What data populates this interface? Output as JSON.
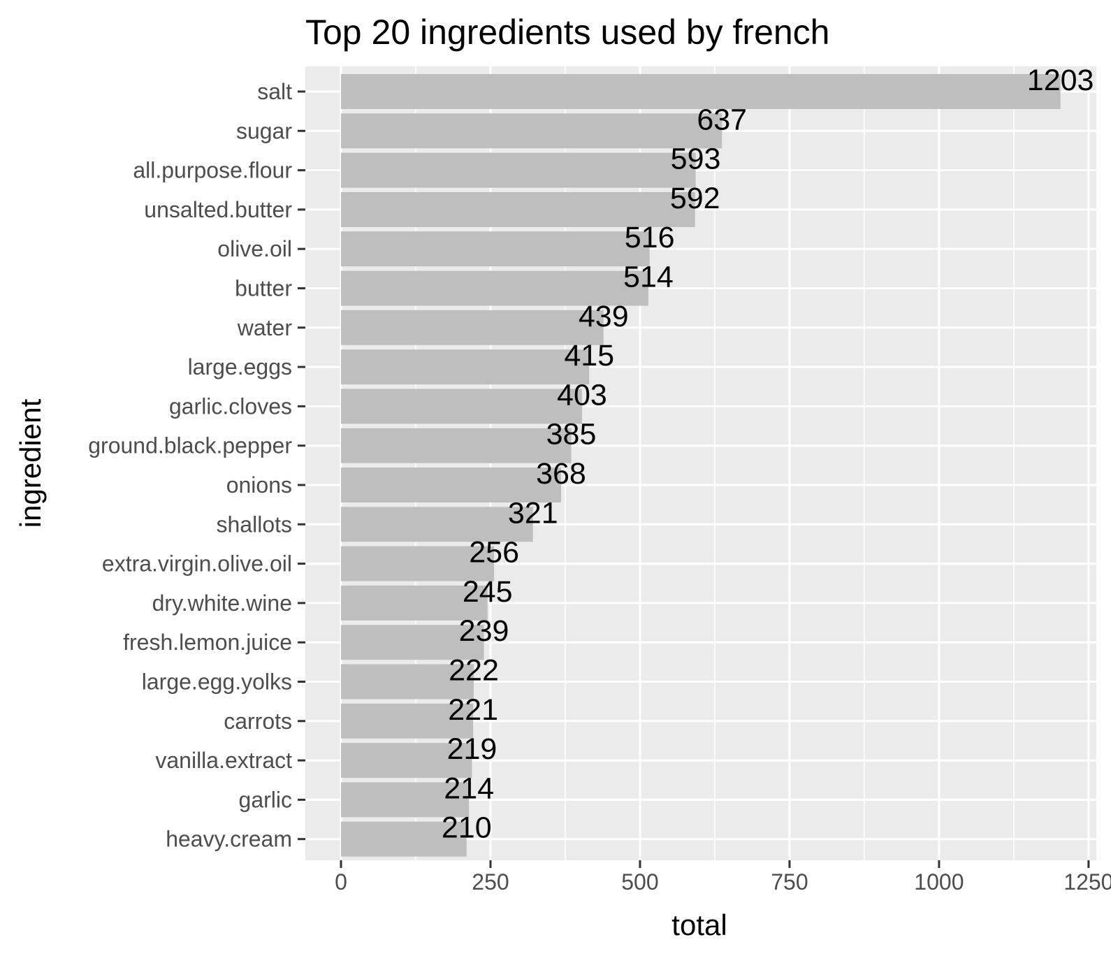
{
  "chart_data": {
    "type": "bar",
    "orientation": "horizontal",
    "title": "Top 20 ingredients used by french",
    "xlabel": "total",
    "ylabel": "ingredient",
    "categories": [
      "salt",
      "sugar",
      "all.purpose.flour",
      "unsalted.butter",
      "olive.oil",
      "butter",
      "water",
      "large.eggs",
      "garlic.cloves",
      "ground.black.pepper",
      "onions",
      "shallots",
      "extra.virgin.olive.oil",
      "dry.white.wine",
      "fresh.lemon.juice",
      "large.egg.yolks",
      "carrots",
      "vanilla.extract",
      "garlic",
      "heavy.cream"
    ],
    "values": [
      1203,
      637,
      593,
      592,
      516,
      514,
      439,
      415,
      403,
      385,
      368,
      321,
      256,
      245,
      239,
      222,
      221,
      219,
      214,
      210
    ],
    "xlim": [
      -60,
      1260
    ],
    "xticks": [
      0,
      250,
      500,
      750,
      1000,
      1250
    ],
    "xtick_labels": [
      "0",
      "250",
      "500",
      "750",
      "1000",
      "1250"
    ],
    "grid": true,
    "colors": {
      "bar": "#bebebe",
      "panel": "#ebebeb",
      "grid": "#ffffff",
      "text": "#000000",
      "tick_text": "#4d4d4d"
    }
  }
}
